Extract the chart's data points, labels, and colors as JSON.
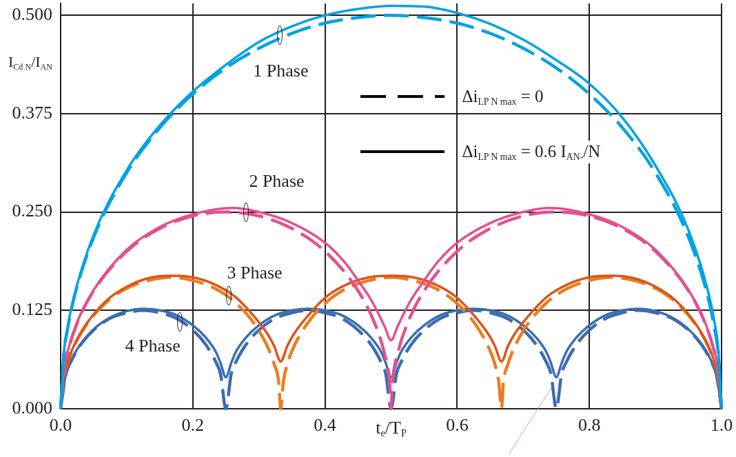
{
  "chart_data": {
    "type": "line",
    "xlabel": "t$_{e}$/T$_{P}$",
    "ylabel": "I$_{Cd N}$/I$_{AN}$",
    "xlim": [
      0,
      1
    ],
    "ylim": [
      0,
      0.515
    ],
    "xticks": [
      {
        "value": 0,
        "label": "0.0"
      },
      0.2,
      0.4,
      0.6,
      0.8,
      {
        "value": 1,
        "label": "1.0"
      }
    ],
    "yticks": [
      {
        "value": 0,
        "label": "0.000"
      },
      0.125,
      {
        "value": 0.25,
        "label": "0.250"
      },
      0.375,
      {
        "value": 0.5,
        "label": "0.500"
      }
    ],
    "grid": true,
    "legend": "top",
    "annotations": [
      {
        "text": "1 Phase",
        "x": 0.332,
        "y": 0.475
      },
      {
        "text": "2 Phase",
        "x": 0.281,
        "y": 0.25
      },
      {
        "text": "3 Phase",
        "x": 0.254,
        "y": 0.144
      },
      {
        "text": "4 Phase",
        "x": 0.18,
        "y": 0.11
      }
    ],
    "series": [
      {
        "name": "Δi$_{LP N max}$ = 0",
        "color": "#000000",
        "line_style": "dashed"
      },
      {
        "name": "Δi$_{LP N max}$ = 0.6 I$_{AN-}$/N",
        "color": "#000000",
        "line_style": "solid"
      },
      {
        "color": "#00a2e3",
        "line_style": "solid",
        "x": [
          0,
          0.005,
          0.01,
          0.02,
          0.05,
          0.1,
          0.15,
          0.2,
          0.25,
          0.3,
          0.35,
          0.4,
          0.45,
          0.5,
          0.55,
          0.6,
          0.65,
          0.7,
          0.75,
          0.8,
          0.85,
          0.9,
          0.95,
          0.98,
          0.99,
          0.995,
          1
        ],
        "values": [
          0,
          0.072,
          0.101,
          0.142,
          0.221,
          0.303,
          0.36,
          0.403,
          0.437,
          0.466,
          0.486,
          0.5,
          0.508,
          0.512,
          0.511,
          0.503,
          0.489,
          0.469,
          0.443,
          0.413,
          0.37,
          0.309,
          0.227,
          0.148,
          0.107,
          0.076,
          0
        ]
      },
      {
        "color": "#00a2e3",
        "line_style": "dashed",
        "x": [
          0,
          0.005,
          0.01,
          0.02,
          0.05,
          0.1,
          0.15,
          0.2,
          0.25,
          0.3,
          0.35,
          0.4,
          0.45,
          0.5,
          0.55,
          0.6,
          0.65,
          0.7,
          0.75,
          0.8,
          0.85,
          0.9,
          0.95,
          0.98,
          0.99,
          0.995,
          1
        ],
        "values": [
          0,
          0.071,
          0.099,
          0.14,
          0.218,
          0.3,
          0.357,
          0.4,
          0.433,
          0.458,
          0.477,
          0.49,
          0.497,
          0.5,
          0.497,
          0.49,
          0.477,
          0.458,
          0.433,
          0.4,
          0.357,
          0.3,
          0.218,
          0.14,
          0.099,
          0.071,
          0
        ]
      },
      {
        "color": "#e3508f",
        "line_style": "solid",
        "x": [
          0,
          0.005,
          0.01,
          0.025,
          0.05,
          0.1,
          0.15,
          0.2,
          0.26,
          0.3,
          0.35,
          0.4,
          0.43,
          0.45,
          0.47,
          0.49,
          0.5,
          0.51,
          0.53,
          0.55,
          0.57,
          0.6,
          0.65,
          0.7,
          0.74,
          0.8,
          0.85,
          0.9,
          0.95,
          0.975,
          0.99,
          0.995,
          1
        ],
        "values": [
          0,
          0.051,
          0.071,
          0.11,
          0.151,
          0.202,
          0.231,
          0.247,
          0.255,
          0.25,
          0.236,
          0.211,
          0.186,
          0.163,
          0.138,
          0.105,
          0.087,
          0.105,
          0.138,
          0.163,
          0.186,
          0.211,
          0.236,
          0.25,
          0.255,
          0.247,
          0.231,
          0.202,
          0.151,
          0.11,
          0.071,
          0.051,
          0
        ]
      },
      {
        "color": "#e3508f",
        "line_style": "dashed",
        "x": [
          0,
          0.005,
          0.01,
          0.025,
          0.05,
          0.1,
          0.15,
          0.2,
          0.25,
          0.3,
          0.35,
          0.4,
          0.45,
          0.475,
          0.49,
          0.498,
          0.5,
          0.502,
          0.51,
          0.525,
          0.55,
          0.6,
          0.65,
          0.7,
          0.75,
          0.8,
          0.85,
          0.9,
          0.95,
          0.975,
          0.99,
          0.995,
          1
        ],
        "values": [
          0,
          0.05,
          0.07,
          0.109,
          0.15,
          0.2,
          0.229,
          0.245,
          0.25,
          0.245,
          0.229,
          0.2,
          0.15,
          0.109,
          0.07,
          0.032,
          0,
          0.032,
          0.07,
          0.109,
          0.15,
          0.2,
          0.229,
          0.245,
          0.25,
          0.245,
          0.229,
          0.2,
          0.15,
          0.109,
          0.07,
          0.05,
          0
        ]
      },
      {
        "color": "#dc5417",
        "line_style": "solid",
        "x": [
          0,
          0.005,
          0.01,
          0.02,
          0.04,
          0.07,
          0.1,
          0.133,
          0.167,
          0.2,
          0.233,
          0.263,
          0.293,
          0.313,
          0.323,
          0.333,
          0.343,
          0.353,
          0.373,
          0.403,
          0.433,
          0.467,
          0.5,
          0.533,
          0.567,
          0.597,
          0.627,
          0.647,
          0.657,
          0.667,
          0.677,
          0.687,
          0.707,
          0.737,
          0.767,
          0.8,
          0.833,
          0.867,
          0.9,
          0.93,
          0.96,
          0.98,
          0.99,
          0.995,
          1
        ],
        "values": [
          0,
          0.041,
          0.058,
          0.08,
          0.109,
          0.138,
          0.155,
          0.166,
          0.169,
          0.167,
          0.158,
          0.143,
          0.117,
          0.095,
          0.08,
          0.06,
          0.08,
          0.095,
          0.117,
          0.143,
          0.158,
          0.167,
          0.169,
          0.167,
          0.158,
          0.143,
          0.117,
          0.095,
          0.08,
          0.06,
          0.08,
          0.095,
          0.117,
          0.143,
          0.158,
          0.167,
          0.169,
          0.166,
          0.155,
          0.138,
          0.109,
          0.08,
          0.058,
          0.041,
          0
        ]
      },
      {
        "color": "#ec7c1e",
        "line_style": "dashed",
        "x": [
          0,
          0.005,
          0.01,
          0.02,
          0.04,
          0.07,
          0.1,
          0.133,
          0.167,
          0.2,
          0.233,
          0.263,
          0.293,
          0.313,
          0.323,
          0.33,
          0.333,
          0.337,
          0.343,
          0.353,
          0.373,
          0.403,
          0.433,
          0.467,
          0.5,
          0.533,
          0.567,
          0.597,
          0.627,
          0.647,
          0.657,
          0.663,
          0.667,
          0.67,
          0.677,
          0.687,
          0.707,
          0.737,
          0.767,
          0.8,
          0.833,
          0.867,
          0.9,
          0.93,
          0.96,
          0.98,
          0.99,
          0.995,
          1
        ],
        "values": [
          0,
          0.04,
          0.057,
          0.079,
          0.108,
          0.136,
          0.153,
          0.163,
          0.167,
          0.163,
          0.153,
          0.136,
          0.108,
          0.079,
          0.057,
          0.034,
          0,
          0.034,
          0.057,
          0.079,
          0.108,
          0.136,
          0.153,
          0.163,
          0.167,
          0.163,
          0.153,
          0.136,
          0.108,
          0.079,
          0.057,
          0.034,
          0,
          0.034,
          0.057,
          0.079,
          0.108,
          0.136,
          0.153,
          0.163,
          0.167,
          0.163,
          0.153,
          0.136,
          0.108,
          0.079,
          0.057,
          0.04,
          0
        ]
      },
      {
        "color": "#3a6cb2",
        "line_style": "solid",
        "x": [
          0,
          0.008,
          0.015,
          0.03,
          0.05,
          0.075,
          0.1,
          0.125,
          0.15,
          0.175,
          0.2,
          0.22,
          0.235,
          0.242,
          0.25,
          0.258,
          0.265,
          0.28,
          0.3,
          0.325,
          0.35,
          0.375,
          0.4,
          0.425,
          0.45,
          0.47,
          0.485,
          0.492,
          0.5,
          0.508,
          0.515,
          0.53,
          0.55,
          0.575,
          0.6,
          0.625,
          0.65,
          0.675,
          0.7,
          0.72,
          0.735,
          0.742,
          0.75,
          0.758,
          0.765,
          0.78,
          0.8,
          0.825,
          0.85,
          0.875,
          0.9,
          0.925,
          0.95,
          0.97,
          0.985,
          0.992,
          1
        ],
        "values": [
          0,
          0.044,
          0.06,
          0.082,
          0.101,
          0.116,
          0.124,
          0.127,
          0.125,
          0.119,
          0.106,
          0.09,
          0.072,
          0.058,
          0.04,
          0.058,
          0.072,
          0.09,
          0.106,
          0.119,
          0.125,
          0.127,
          0.125,
          0.119,
          0.106,
          0.09,
          0.072,
          0.058,
          0.04,
          0.058,
          0.072,
          0.09,
          0.106,
          0.119,
          0.125,
          0.127,
          0.125,
          0.119,
          0.106,
          0.09,
          0.072,
          0.058,
          0.04,
          0.058,
          0.072,
          0.09,
          0.106,
          0.119,
          0.125,
          0.127,
          0.124,
          0.116,
          0.101,
          0.082,
          0.06,
          0.044,
          0
        ]
      },
      {
        "color": "#3a6cb2",
        "line_style": "dashed",
        "x": [
          0,
          0.008,
          0.015,
          0.03,
          0.05,
          0.075,
          0.1,
          0.125,
          0.15,
          0.175,
          0.2,
          0.22,
          0.235,
          0.242,
          0.25,
          0.258,
          0.265,
          0.28,
          0.3,
          0.325,
          0.35,
          0.375,
          0.4,
          0.425,
          0.45,
          0.47,
          0.485,
          0.492,
          0.5,
          0.508,
          0.515,
          0.53,
          0.55,
          0.575,
          0.6,
          0.625,
          0.65,
          0.675,
          0.7,
          0.72,
          0.735,
          0.742,
          0.75,
          0.758,
          0.765,
          0.78,
          0.8,
          0.825,
          0.85,
          0.875,
          0.9,
          0.925,
          0.95,
          0.97,
          0.985,
          0.992,
          1
        ],
        "values": [
          0,
          0.044,
          0.059,
          0.081,
          0.1,
          0.115,
          0.122,
          0.125,
          0.122,
          0.115,
          0.1,
          0.081,
          0.059,
          0.044,
          0,
          0.044,
          0.059,
          0.081,
          0.1,
          0.115,
          0.122,
          0.125,
          0.122,
          0.115,
          0.1,
          0.081,
          0.059,
          0.044,
          0,
          0.044,
          0.059,
          0.081,
          0.1,
          0.115,
          0.122,
          0.125,
          0.122,
          0.115,
          0.1,
          0.081,
          0.059,
          0.044,
          0,
          0.044,
          0.059,
          0.081,
          0.1,
          0.115,
          0.122,
          0.125,
          0.122,
          0.115,
          0.1,
          0.081,
          0.059,
          0.044,
          0
        ]
      }
    ]
  }
}
